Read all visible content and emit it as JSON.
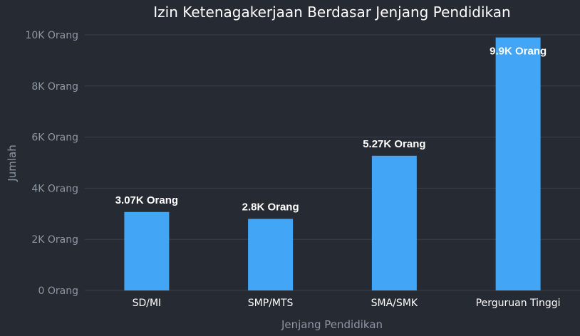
{
  "chart_data": {
    "type": "bar",
    "title": "Izin Ketenagakerjaan Berdasar Jenjang Pendidikan",
    "xlabel": "Jenjang Pendidikan",
    "ylabel": "Jumlah",
    "categories": [
      "SD/MI",
      "SMP/MTS",
      "SMA/SMK",
      "Perguruan Tinggi"
    ],
    "values": [
      3070,
      2800,
      5270,
      9900
    ],
    "data_labels": [
      "3.07K Orang",
      "2.8K Orang",
      "5.27K Orang",
      "9.9K Orang"
    ],
    "y_ticks": [
      0,
      2000,
      4000,
      6000,
      8000,
      10000
    ],
    "y_tick_labels": [
      "0 Orang",
      "2K Orang",
      "4K Orang",
      "6K Orang",
      "8K Orang",
      "10K Orang"
    ],
    "ylim": [
      0,
      10000
    ],
    "grid": true,
    "legend": "none",
    "colors": {
      "bar": "#42a5f5",
      "background": "#262a33",
      "grid": "#3a3f4a",
      "text": "#ffffff",
      "muted": "#8f96a3"
    }
  }
}
